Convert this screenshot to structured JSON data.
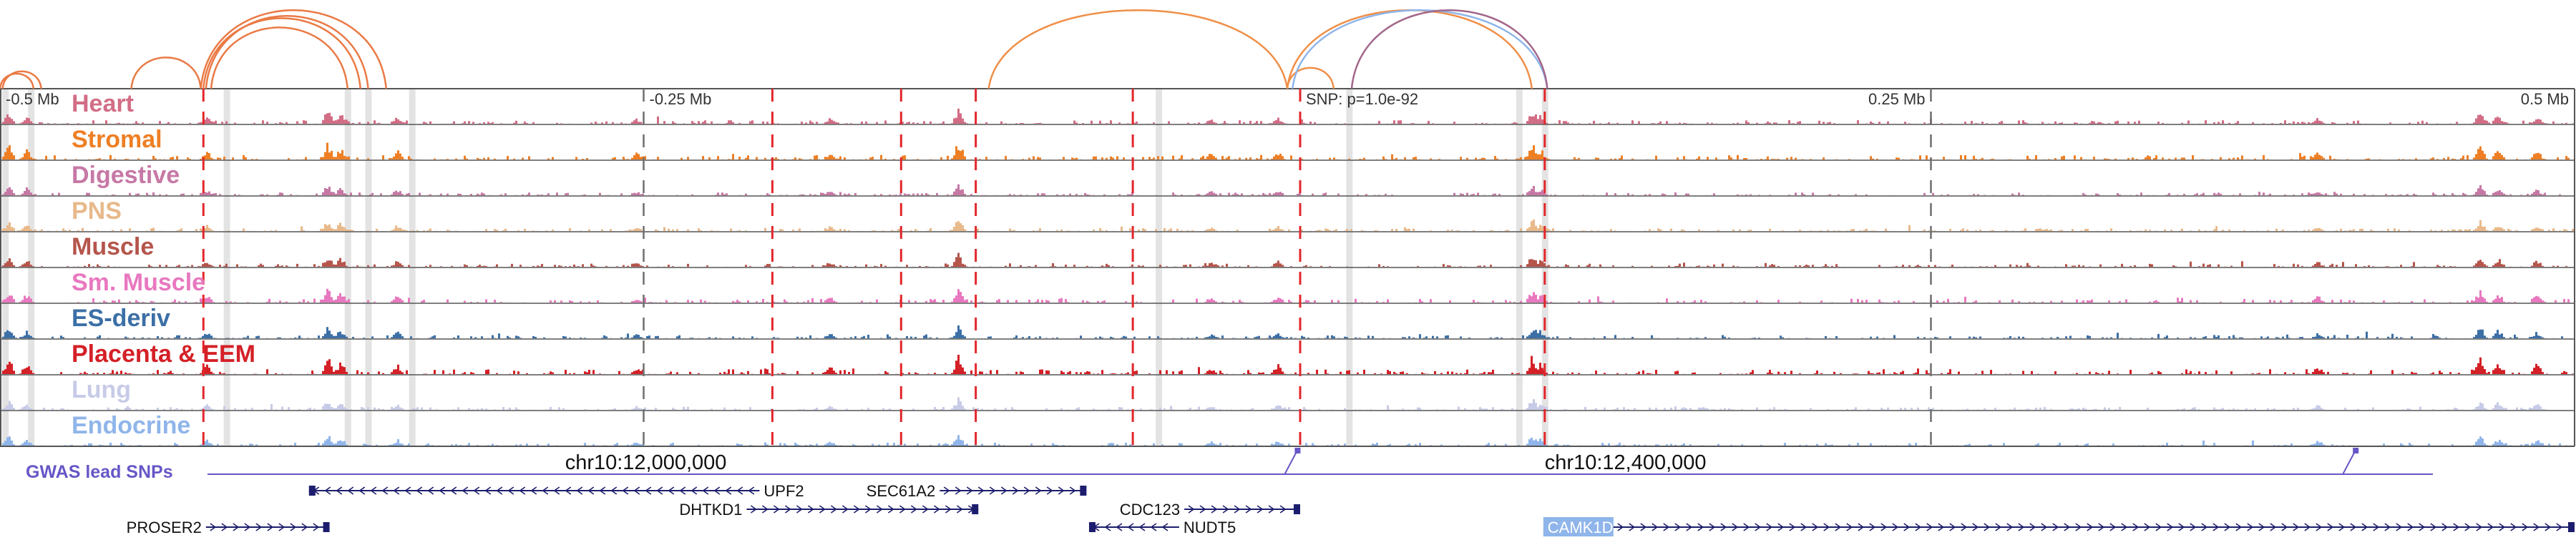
{
  "chart_data": {
    "type": "genome-browser-tracks",
    "axis": {
      "tick_labels": [
        {
          "label": "-0.5 Mb",
          "pos": -0.5
        },
        {
          "label": "-0.25 Mb",
          "pos": -0.25
        },
        {
          "label": "0.25 Mb",
          "pos": 0.25
        },
        {
          "label": "0.5 Mb",
          "pos": 0.5
        }
      ],
      "range": [
        -0.5,
        0.5
      ]
    },
    "snp_label": "SNP: p=1.0e-92",
    "tracks": [
      {
        "name": "Heart",
        "color": "#d26d85",
        "seed": 11,
        "scale": 0.55
      },
      {
        "name": "Stromal",
        "color": "#ee7f24",
        "seed": 23,
        "scale": 0.7
      },
      {
        "name": "Digestive",
        "color": "#c678a5",
        "seed": 37,
        "scale": 0.45
      },
      {
        "name": "PNS",
        "color": "#e8b98a",
        "seed": 41,
        "scale": 0.45
      },
      {
        "name": "Muscle",
        "color": "#b5554c",
        "seed": 53,
        "scale": 0.5
      },
      {
        "name": "Sm. Muscle",
        "color": "#e878bf",
        "seed": 67,
        "scale": 0.6
      },
      {
        "name": "ES-deriv",
        "color": "#3c6fa6",
        "seed": 71,
        "scale": 0.5
      },
      {
        "name": "Placenta & EEM",
        "color": "#d42027",
        "seed": 83,
        "scale": 0.75
      },
      {
        "name": "Lung",
        "color": "#c7cbe7",
        "seed": 97,
        "scale": 0.45
      },
      {
        "name": "Endocrine",
        "color": "#8fb5ea",
        "seed": 101,
        "scale": 0.45
      }
    ],
    "peaks": [
      {
        "pos": -0.497,
        "h": 0.7
      },
      {
        "pos": -0.49,
        "h": 0.5
      },
      {
        "pos": -0.42,
        "h": 0.4
      },
      {
        "pos": -0.373,
        "h": 0.8
      },
      {
        "pos": -0.368,
        "h": 0.6
      },
      {
        "pos": -0.346,
        "h": 0.45
      },
      {
        "pos": -0.178,
        "h": 0.35
      },
      {
        "pos": -0.128,
        "h": 0.9
      },
      {
        "pos": -0.128,
        "h": 0.5
      },
      {
        "pos": -0.004,
        "h": 0.4
      },
      {
        "pos": 0.095,
        "h": 0.85
      },
      {
        "pos": 0.098,
        "h": 0.5
      },
      {
        "pos": 0.4,
        "h": 0.35
      },
      {
        "pos": 0.463,
        "h": 0.75
      },
      {
        "pos": 0.47,
        "h": 0.55
      },
      {
        "pos": 0.485,
        "h": 0.45
      },
      {
        "pos": -0.03,
        "h": 0.3
      },
      {
        "pos": -0.253,
        "h": 0.3
      }
    ],
    "highlight_bands": [
      -0.498,
      -0.488,
      -0.412,
      -0.365,
      -0.357,
      -0.34,
      -0.05,
      0.024,
      0.09,
      0.1
    ],
    "red_dashed_lines": [
      -0.421,
      -0.2,
      -0.15,
      -0.121,
      -0.06,
      0.005,
      0.1
    ],
    "gray_dashed_lines": [
      -0.25,
      0.25
    ],
    "loops": [
      {
        "a": -0.5,
        "b": -0.487,
        "color": "#ea7a45"
      },
      {
        "a": -0.499,
        "b": -0.484,
        "color": "#ea7a45"
      },
      {
        "a": -0.449,
        "b": -0.422,
        "color": "#ea7a45"
      },
      {
        "a": -0.422,
        "b": -0.35,
        "color": "#ea7a45"
      },
      {
        "a": -0.421,
        "b": -0.36,
        "color": "#ea7a45"
      },
      {
        "a": -0.418,
        "b": -0.365,
        "color": "#ea7a45"
      },
      {
        "a": -0.42,
        "b": -0.357,
        "color": "#ea7a45"
      },
      {
        "a": -0.116,
        "b": 0.0,
        "color": "#ef8f48"
      },
      {
        "a": 0.0,
        "b": 0.018,
        "color": "#ef8f48"
      },
      {
        "a": 0.0,
        "b": 0.095,
        "color": "#ef8f48"
      },
      {
        "a": 0.002,
        "b": 0.101,
        "color": "#8fb5ea"
      },
      {
        "a": 0.025,
        "b": 0.101,
        "color": "#a3678a"
      }
    ],
    "gwas": {
      "label": "GWAS lead SNPs",
      "coord_labels": [
        {
          "label": "chr10:12,000,000",
          "pos": -0.35
        },
        {
          "label": "chr10:12,400,000",
          "pos": 0.1
        }
      ],
      "snp_positions": [
        0.004,
        0.415
      ]
    },
    "genes": [
      {
        "name": "UPF2",
        "start": -0.38,
        "end": -0.205,
        "strand": "-",
        "row": 0,
        "label_pos": "end-right"
      },
      {
        "name": "SEC61A2",
        "start": -0.135,
        "end": -0.078,
        "strand": "+",
        "row": 0,
        "label_pos": "start-left"
      },
      {
        "name": "DHTKD1",
        "start": -0.21,
        "end": -0.12,
        "strand": "+",
        "row": 1,
        "label_pos": "start-left"
      },
      {
        "name": "CDC123",
        "start": -0.04,
        "end": 0.005,
        "strand": "+",
        "row": 1,
        "label_pos": "start-left"
      },
      {
        "name": "PROSER2",
        "start": -0.42,
        "end": -0.372,
        "strand": "+",
        "row": 2,
        "label_pos": "start-left"
      },
      {
        "name": "NUDT5",
        "start": -0.077,
        "end": -0.042,
        "strand": "-",
        "row": 2,
        "label_pos": "end-right"
      },
      {
        "name": "CAMK1D",
        "start": 0.1,
        "end": 0.5,
        "strand": "+",
        "row": 2,
        "label_pos": "start-highlight"
      }
    ],
    "colors": {
      "frame": "#555555",
      "gwas": "#6657c7",
      "gene": "#1d1d6e",
      "red_dash": "#e2262b",
      "gray_dash": "#6f6f6f",
      "highlight": "#e3e3e3",
      "camk1d_bg": "#8fb5ea"
    }
  }
}
